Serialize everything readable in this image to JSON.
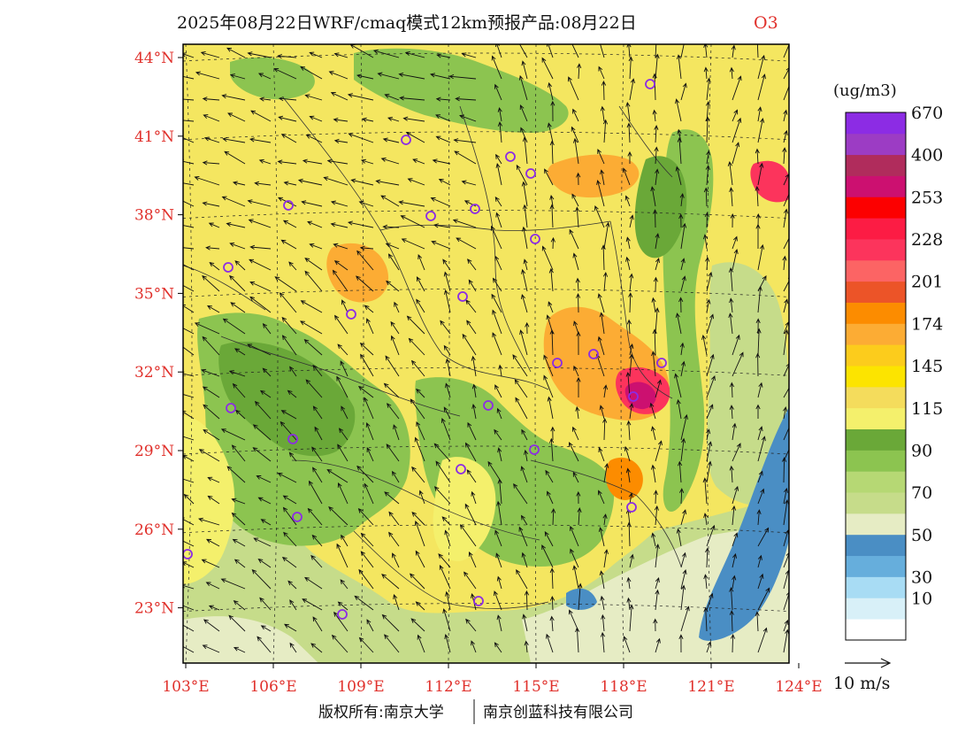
{
  "title": {
    "main": "2025年08月22日WRF/cmaq模式12km预报产品:08月22日",
    "pollutant": "O3"
  },
  "unit": "(ug/m3)",
  "colorbar": [
    {
      "label": "",
      "color": "#ffffff"
    },
    {
      "label": "10",
      "color": "#d8f0f8"
    },
    {
      "label": "30",
      "color": "#a8dcf4"
    },
    {
      "label": "",
      "color": "#66aedc"
    },
    {
      "label": "50",
      "color": "#4a8ec4"
    },
    {
      "label": "",
      "color": "#e6ecc4"
    },
    {
      "label": "70",
      "color": "#c6dc8a"
    },
    {
      "label": "",
      "color": "#b6d874"
    },
    {
      "label": "90",
      "color": "#8cc450"
    },
    {
      "label": "",
      "color": "#6aa838"
    },
    {
      "label": "115",
      "color": "#f4f06c"
    },
    {
      "label": "",
      "color": "#f4dc5c"
    },
    {
      "label": "145",
      "color": "#fce400"
    },
    {
      "label": "",
      "color": "#fccc1c"
    },
    {
      "label": "174",
      "color": "#fcac34"
    },
    {
      "label": "",
      "color": "#fc8c00"
    },
    {
      "label": "201",
      "color": "#ec5428"
    },
    {
      "label": "",
      "color": "#fc6464"
    },
    {
      "label": "228",
      "color": "#fc345c"
    },
    {
      "label": "",
      "color": "#fc1c44"
    },
    {
      "label": "253",
      "color": "#fc0000"
    },
    {
      "label": "",
      "color": "#cc1070"
    },
    {
      "label": "400",
      "color": "#b02c5c"
    },
    {
      "label": "",
      "color": "#9c3cc4"
    },
    {
      "label": "670",
      "color": "#8c2ce4"
    }
  ],
  "lat_labels": [
    "44°N",
    "41°N",
    "38°N",
    "35°N",
    "32°N",
    "29°N",
    "26°N",
    "23°N"
  ],
  "lon_labels": [
    "103°E",
    "106°E",
    "109°E",
    "112°E",
    "115°E",
    "118°E",
    "121°E",
    "124°E"
  ],
  "wind_scale_label": "10 m/s",
  "footer": {
    "left": "版权所有:南京大学",
    "right": "南京创蓝科技有限公司"
  },
  "colors": {
    "background_land": "#f4e660",
    "sea": "#4a8ec4",
    "high": "#fc345c",
    "station_marker": "#8c2ce4"
  }
}
